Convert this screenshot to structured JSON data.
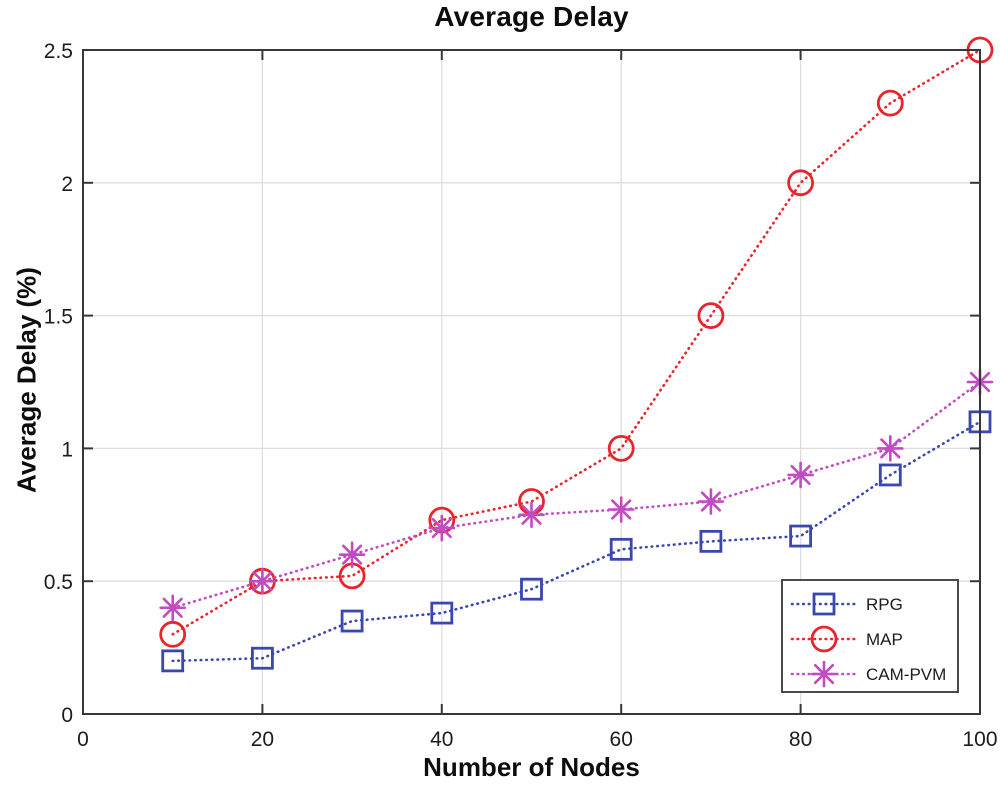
{
  "chart_data": {
    "type": "line",
    "title": "Average Delay",
    "xlabel": "Number of Nodes",
    "ylabel": "Average Delay (%)",
    "x": [
      10,
      20,
      30,
      40,
      50,
      60,
      70,
      80,
      90,
      100
    ],
    "series": [
      {
        "name": "RPG",
        "marker": "square",
        "color": "#3a47ad",
        "values": [
          0.2,
          0.21,
          0.35,
          0.38,
          0.47,
          0.62,
          0.65,
          0.67,
          0.9,
          1.1
        ]
      },
      {
        "name": "MAP",
        "marker": "circle",
        "color": "#e8242c",
        "values": [
          0.3,
          0.5,
          0.52,
          0.73,
          0.8,
          1.0,
          1.5,
          2.0,
          2.3,
          2.5
        ]
      },
      {
        "name": "CAM-PVM",
        "marker": "asterisk",
        "color": "#c24ac2",
        "values": [
          0.4,
          0.5,
          0.6,
          0.7,
          0.75,
          0.77,
          0.8,
          0.9,
          1.0,
          1.25
        ]
      }
    ],
    "xlim": [
      0,
      100
    ],
    "ylim": [
      0,
      2.5
    ],
    "xticks": [
      0,
      20,
      40,
      60,
      80,
      100
    ],
    "yticks": [
      0,
      0.5,
      1,
      1.5,
      2,
      2.5
    ],
    "grid": true,
    "line_style": "dotted",
    "legend_position": "lower-right",
    "colors": {
      "grid": "#dedede",
      "axis": "#373737",
      "text": "#1c1c1c",
      "background": "#ffffff"
    }
  }
}
